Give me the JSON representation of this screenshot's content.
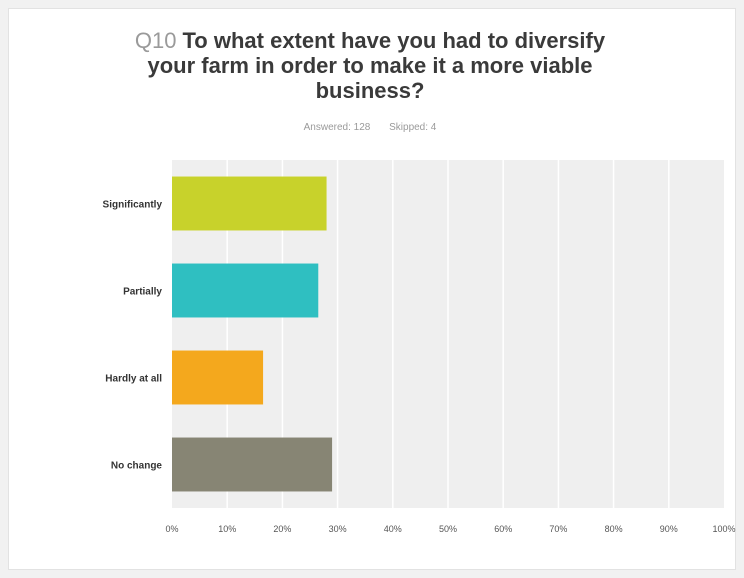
{
  "question_number": "Q10",
  "question_text": "To what extent have you had to diversify your farm in order to make it a more viable business?",
  "answered": "Answered: 128",
  "skipped": "Skipped: 4",
  "colors": {
    "plot_background": "#efefef",
    "gridline": "#ffffff"
  },
  "chart_data": {
    "type": "bar",
    "orientation": "horizontal",
    "categories": [
      "Significantly",
      "Partially",
      "Hardly at all",
      "No change"
    ],
    "values": [
      28,
      26.5,
      16.5,
      29
    ],
    "colors": [
      "#c8d22b",
      "#2fbfc1",
      "#f4a81d",
      "#878574"
    ],
    "xlim": [
      0,
      100
    ],
    "x_ticks": [
      "0%",
      "10%",
      "20%",
      "30%",
      "40%",
      "50%",
      "60%",
      "70%",
      "80%",
      "90%",
      "100%"
    ],
    "unit": "%",
    "grid": true
  }
}
